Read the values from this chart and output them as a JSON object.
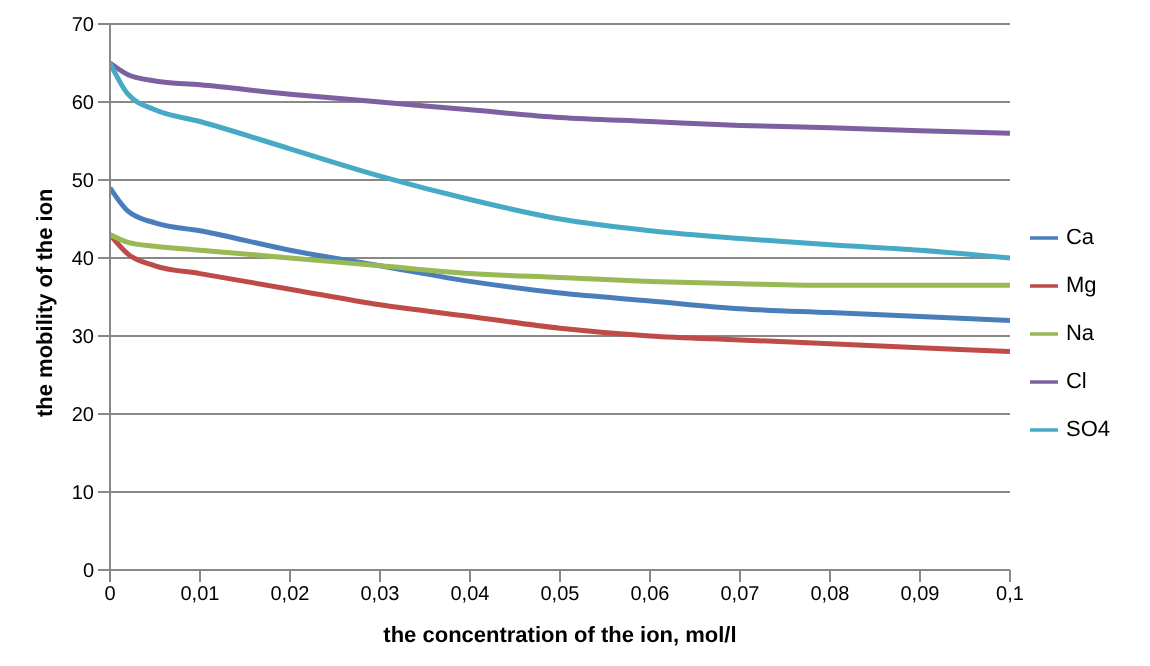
{
  "chart_data": {
    "type": "line",
    "xlabel": "the concentration  of the ion, mol/l",
    "ylabel": "the mobility of the ion",
    "x": [
      0,
      0.002,
      0.005,
      0.01,
      0.02,
      0.03,
      0.04,
      0.05,
      0.06,
      0.07,
      0.08,
      0.09,
      0.1
    ],
    "series": [
      {
        "name": "Ca",
        "color": "#4a7ebb",
        "values": [
          49,
          46,
          44.5,
          43.5,
          41,
          39,
          37,
          35.5,
          34.5,
          33.5,
          33,
          32.5,
          32
        ]
      },
      {
        "name": "Mg",
        "color": "#be4b48",
        "values": [
          43,
          40.5,
          39,
          38,
          36,
          34,
          32.5,
          31,
          30,
          29.5,
          29,
          28.5,
          28
        ]
      },
      {
        "name": "Na",
        "color": "#98b954",
        "values": [
          43,
          42,
          41.5,
          41,
          40,
          39,
          38,
          37.5,
          37,
          36.7,
          36.5,
          36.5,
          36.5
        ]
      },
      {
        "name": "Cl",
        "color": "#7d60a0",
        "values": [
          65,
          63.5,
          62.7,
          62.2,
          61,
          60,
          59,
          58,
          57.5,
          57,
          56.7,
          56.3,
          56
        ]
      },
      {
        "name": "SO4",
        "color": "#46aac5",
        "values": [
          65,
          61,
          59,
          57.5,
          54,
          50.5,
          47.5,
          45,
          43.5,
          42.5,
          41.7,
          41,
          40
        ]
      }
    ],
    "xlim": [
      0,
      0.1
    ],
    "xticks": [
      0,
      {
        "value": 0.01,
        "label": "0,01"
      },
      {
        "value": 0.02,
        "label": "0,02"
      },
      {
        "value": 0.03,
        "label": "0,03"
      },
      {
        "value": 0.04,
        "label": "0,04"
      },
      {
        "value": 0.05,
        "label": "0,05"
      },
      {
        "value": 0.06,
        "label": "0,06"
      },
      {
        "value": 0.07,
        "label": "0,07"
      },
      {
        "value": 0.08,
        "label": "0,08"
      },
      {
        "value": 0.09,
        "label": "0,09"
      },
      {
        "value": 0.1,
        "label": "0,1"
      }
    ],
    "ylim": [
      0,
      70
    ],
    "yticks": [
      0,
      10,
      20,
      30,
      40,
      50,
      60,
      70
    ],
    "grid": "y",
    "legend": "right",
    "marker": "none",
    "line_style": "solid"
  }
}
